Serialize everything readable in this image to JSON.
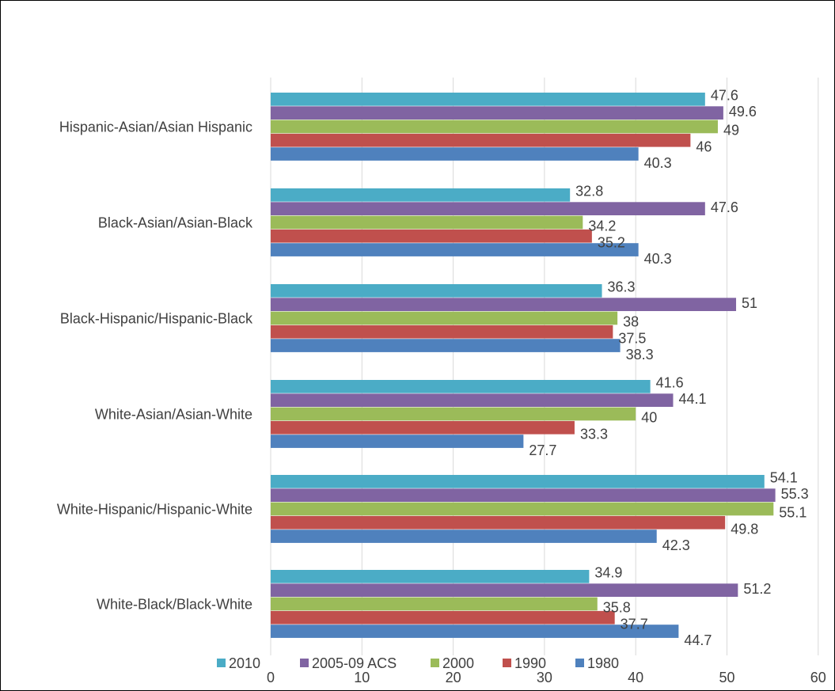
{
  "chart_data": {
    "type": "bar",
    "orientation": "horizontal",
    "title": "",
    "xlabel": "",
    "ylabel": "",
    "xlim": [
      0,
      60
    ],
    "x_ticks": [
      "0",
      "10",
      "20",
      "30",
      "40",
      "50",
      "60"
    ],
    "grid": "vertical",
    "legend_position": "bottom",
    "categories": [
      "White-Black/Black-White",
      "White-Hispanic/Hispanic-White",
      "White-Asian/Asian-White",
      "Black-Hispanic/Hispanic-Black",
      "Black-Asian/Asian-Black",
      "Hispanic-Asian/Asian Hispanic"
    ],
    "series": [
      {
        "name": "1980",
        "color": "#4f81bd",
        "values": [
          44.7,
          42.3,
          27.7,
          38.3,
          40.3,
          40.3
        ]
      },
      {
        "name": "1990",
        "color": "#c0504d",
        "values": [
          37.7,
          49.8,
          33.3,
          37.5,
          35.2,
          46
        ]
      },
      {
        "name": "2000",
        "color": "#9bbb59",
        "values": [
          35.8,
          55.1,
          40,
          38,
          34.2,
          49
        ]
      },
      {
        "name": "2005-09 ACS",
        "color": "#8064a2",
        "values": [
          51.2,
          55.3,
          44.1,
          51,
          47.6,
          49.6
        ]
      },
      {
        "name": "2010",
        "color": "#4bacc6",
        "values": [
          34.9,
          54.1,
          41.6,
          36.3,
          32.8,
          47.6
        ]
      }
    ],
    "legend_order": [
      "2010",
      "2005-09 ACS",
      "2000",
      "1990",
      "1980"
    ]
  }
}
